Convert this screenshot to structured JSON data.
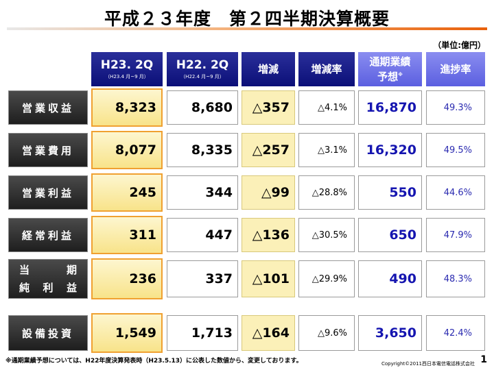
{
  "title": "平成２３年度　第２四半期決算概要",
  "unit": "（単位:億円）",
  "headers": {
    "h23": {
      "main": "H23. 2Q",
      "sub": "（H23.4 月~9 月）"
    },
    "h22": {
      "main": "H22. 2Q",
      "sub": "（H22.4 月~9 月）"
    },
    "diff": "増減",
    "rate": "増減率",
    "forecast_line1": "通期業績",
    "forecast_line2": "予想",
    "forecast_mark": "※",
    "progress": "進捗率"
  },
  "rows": [
    {
      "label": "営業収益",
      "h23": "8,323",
      "h22": "8,680",
      "diff": "△357",
      "rate": "△4.1%",
      "forecast": "16,870",
      "progress": "49.3%"
    },
    {
      "label": "営業費用",
      "h23": "8,077",
      "h22": "8,335",
      "diff": "△257",
      "rate": "△3.1%",
      "forecast": "16,320",
      "progress": "49.5%"
    },
    {
      "label": "営業利益",
      "h23": "245",
      "h22": "344",
      "diff": "△99",
      "rate": "△28.8%",
      "forecast": "550",
      "progress": "44.6%"
    },
    {
      "label": "経常利益",
      "h23": "311",
      "h22": "447",
      "diff": "△136",
      "rate": "△30.5%",
      "forecast": "650",
      "progress": "47.9%"
    },
    {
      "label_line1": [
        "当",
        "期"
      ],
      "label_line2": [
        "純",
        "利",
        "益"
      ],
      "h23": "236",
      "h22": "337",
      "diff": "△101",
      "rate": "△29.9%",
      "forecast": "490",
      "progress": "48.3%"
    },
    {
      "label": "設備投資",
      "h23": "1,549",
      "h22": "1,713",
      "diff": "△164",
      "rate": "△9.6%",
      "forecast": "3,650",
      "progress": "42.4%"
    }
  ],
  "footnote": "※通期業績予想については、H22年度決算発表時（H23.5.13）に公表した数値から、変更しております。",
  "copyright": "Copyright©2011西日本電信電話株式会社",
  "page_number": "1"
}
